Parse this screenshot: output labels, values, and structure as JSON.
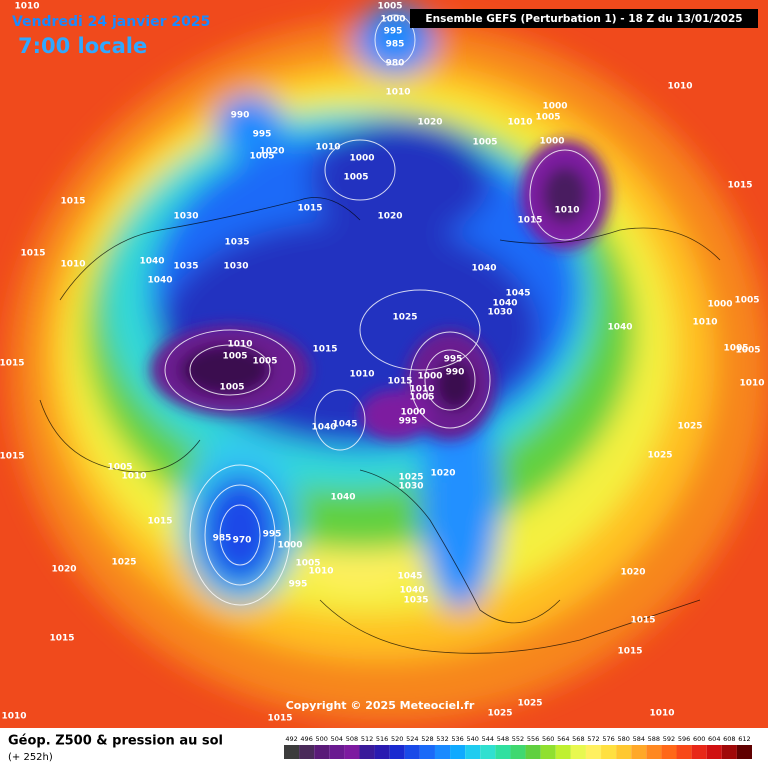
{
  "header": {
    "date": "Vendredi 24 janvier 2025",
    "time": "7:00 locale",
    "model": "Ensemble GEFS  (Perturbation 1)  -  18 Z du 13/01/2025"
  },
  "copyright": "Copyright © 2025 Meteociel.fr",
  "legend": {
    "title": "Géop. Z500 & pression au sol",
    "lead": "(+ 252h)",
    "labels": [
      492,
      496,
      500,
      504,
      508,
      512,
      516,
      520,
      524,
      528,
      532,
      536,
      540,
      544,
      548,
      552,
      556,
      560,
      564,
      568,
      572,
      576,
      580,
      584,
      588,
      592,
      596,
      600,
      604,
      608,
      612
    ],
    "colors": [
      "#3c3c3c",
      "#4a2a5a",
      "#5a1a78",
      "#6a1a90",
      "#7d1aa0",
      "#3a1a9a",
      "#2a1ab0",
      "#1a2ad0",
      "#1a4ae8",
      "#1a6af8",
      "#1a8aff",
      "#10aaff",
      "#20ccf0",
      "#30e0d0",
      "#30e0a0",
      "#40d870",
      "#60d040",
      "#90e030",
      "#c0f030",
      "#e8f850",
      "#fff060",
      "#ffe040",
      "#ffc830",
      "#ffa828",
      "#ff8820",
      "#ff6818",
      "#f84818",
      "#e82818",
      "#d01010",
      "#a00808",
      "#600000"
    ]
  },
  "isobars": [
    1005,
    1000,
    995,
    985,
    980,
    1010,
    1010,
    990,
    995,
    1005,
    1020,
    1010,
    1000,
    1005,
    1020,
    1005,
    1010,
    1000,
    1005,
    1000,
    1010,
    1015,
    1020,
    1015,
    1030,
    1035,
    1030,
    1035,
    1040,
    1040,
    1015,
    1010,
    1015,
    1015,
    1015,
    1005,
    1010,
    1015,
    1020,
    1025,
    1015,
    1010,
    1015,
    1025,
    1040,
    1045,
    1040,
    1030,
    995,
    990,
    1000,
    1015,
    1010,
    1005,
    1000,
    995,
    1015,
    1010,
    1010,
    1005,
    1005,
    1005,
    1045,
    1040,
    1020,
    1025,
    1030,
    1040,
    985,
    970,
    995,
    1000,
    1005,
    1010,
    995,
    1045,
    1040,
    1035,
    1040,
    1000,
    1005,
    1010,
    1005,
    1010,
    1025,
    1025,
    1020,
    1015,
    1015,
    1025,
    1025,
    1010,
    1005,
    1010,
    1015
  ]
}
